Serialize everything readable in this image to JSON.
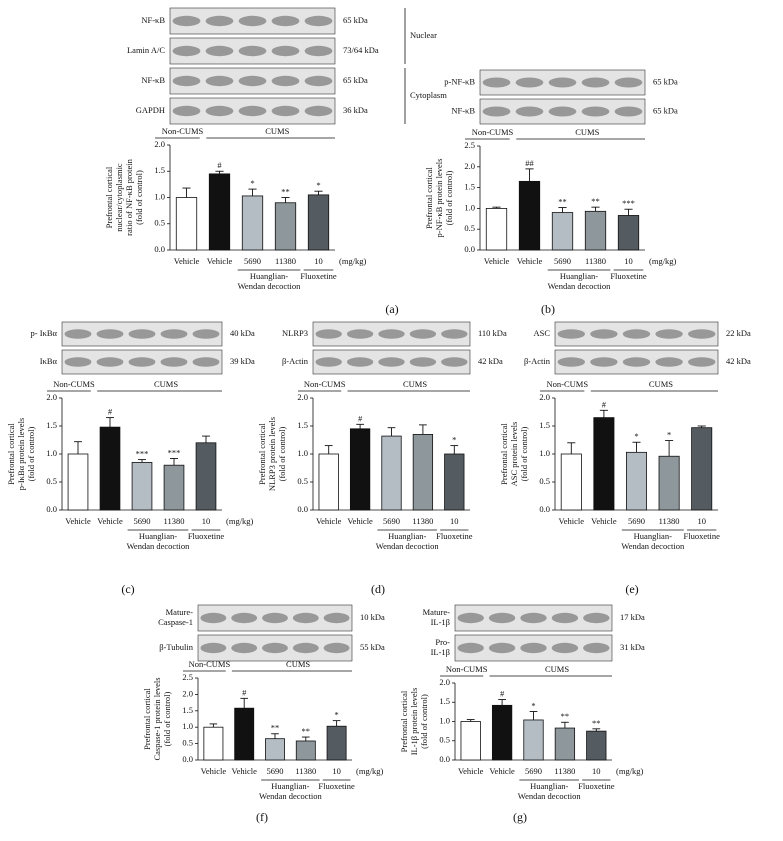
{
  "chart_data": [
    {
      "type": "bar",
      "panel": "(a)",
      "blots": [
        {
          "label": [
            "NF-κB"
          ],
          "size": "65 kDa"
        },
        {
          "label": [
            "Lamin A/C"
          ],
          "size": "73/64 kDa"
        },
        {
          "label": [
            "NF-κB"
          ],
          "size": "65 kDa"
        },
        {
          "label": [
            "GAPDH"
          ],
          "size": "36 kDa"
        }
      ],
      "fractions": [
        "Nuclear",
        "Cytoplasm"
      ],
      "groups": [
        "Non-CUMS",
        "CUMS"
      ],
      "treatments": [
        [
          "Huanglian-",
          "Wendan decoction"
        ],
        [
          "Fluoxetine"
        ]
      ],
      "unit": "(mg/kg)",
      "ylabel": [
        "Prefrontal cortical",
        "nuclear/cytoplasmic",
        "ratio of NF-κB protein",
        "(fold of control)"
      ],
      "categories": [
        "Vehicle",
        "Vehicle",
        "5690",
        "11380",
        "10"
      ],
      "values": [
        1.0,
        1.45,
        1.03,
        0.9,
        1.05
      ],
      "errors": [
        0.18,
        0.05,
        0.13,
        0.1,
        0.07
      ],
      "annotations": [
        null,
        "#",
        "*",
        "**",
        "*"
      ],
      "colors": [
        "#ffffff",
        "#111111",
        "#b4bcc4",
        "#8e979b",
        "#555c61"
      ],
      "ylim": [
        0,
        2
      ],
      "yticks": [
        {
          "value": 0,
          "label": "0.0"
        },
        0.5,
        {
          "value": 1,
          "label": "1.0"
        },
        1.5,
        {
          "value": 2,
          "label": "2.0"
        }
      ]
    },
    {
      "type": "bar",
      "panel": "(b)",
      "blots": [
        {
          "label": [
            "p-NF-κB"
          ],
          "size": "65 kDa"
        },
        {
          "label": [
            "NF-κB"
          ],
          "size": "65 kDa"
        }
      ],
      "groups": [
        "Non-CUMS",
        "CUMS"
      ],
      "treatments": [
        [
          "Huanglian-",
          "Wendan decoction"
        ],
        [
          "Fluoxetine"
        ]
      ],
      "unit": "(mg/kg)",
      "ylabel": [
        "Prefrontal cortical",
        "p-NF-κB protein levels",
        "(fold of control)"
      ],
      "categories": [
        "Vehicle",
        "Vehicle",
        "5690",
        "11380",
        "10"
      ],
      "values": [
        1.0,
        1.65,
        0.9,
        0.93,
        0.83
      ],
      "errors": [
        0.03,
        0.3,
        0.12,
        0.1,
        0.15
      ],
      "annotations": [
        null,
        "##",
        "**",
        "**",
        "***"
      ],
      "colors": [
        "#ffffff",
        "#111111",
        "#b4bcc4",
        "#8e979b",
        "#555c61"
      ],
      "ylim": [
        0,
        2.5
      ],
      "yticks": [
        {
          "value": 0,
          "label": "0.0"
        },
        0.5,
        {
          "value": 1,
          "label": "1.0"
        },
        1.5,
        {
          "value": 2,
          "label": "2.0"
        },
        2.5
      ]
    },
    {
      "type": "bar",
      "panel": "(c)",
      "blots": [
        {
          "label": [
            "p- IκBα"
          ],
          "size": "40 kDa"
        },
        {
          "label": [
            "IκBα"
          ],
          "size": "39 kDa"
        }
      ],
      "groups": [
        "Non-CUMS",
        "CUMS"
      ],
      "treatments": [
        [
          "Huanglian-",
          "Wendan decoction"
        ],
        [
          "Fluoxetine"
        ]
      ],
      "unit": "(mg/kg)",
      "ylabel": [
        "Prefrontal cortical",
        "p-IκBα protein levels",
        "(fold of control)"
      ],
      "categories": [
        "Vehicle",
        "Vehicle",
        "5690",
        "11380",
        "10"
      ],
      "values": [
        1.0,
        1.48,
        0.85,
        0.8,
        1.2
      ],
      "errors": [
        0.22,
        0.17,
        0.05,
        0.12,
        0.12
      ],
      "annotations": [
        null,
        "#",
        "***",
        "***",
        null
      ],
      "colors": [
        "#ffffff",
        "#111111",
        "#b4bcc4",
        "#8e979b",
        "#555c61"
      ],
      "ylim": [
        0,
        2
      ],
      "yticks": [
        {
          "value": 0,
          "label": "0.0"
        },
        0.5,
        {
          "value": 1,
          "label": "1.0"
        },
        1.5,
        {
          "value": 2,
          "label": "2.0"
        }
      ]
    },
    {
      "type": "bar",
      "panel": "(d)",
      "blots": [
        {
          "label": [
            "NLRP3"
          ],
          "size": "110 kDa"
        },
        {
          "label": [
            "β-Actin"
          ],
          "size": "42 kDa"
        }
      ],
      "groups": [
        "Non-CUMS",
        "CUMS"
      ],
      "treatments": [
        [
          "Huanglian-",
          "Wendan decoction"
        ],
        [
          "Fluoxetine"
        ]
      ],
      "ylabel": [
        "Prefrontal cortical",
        "NLRP3 protein levels",
        "(fold of control)"
      ],
      "categories": [
        "Vehicle",
        "Vehicle",
        "5690",
        "11380",
        "10"
      ],
      "values": [
        1.0,
        1.45,
        1.32,
        1.35,
        1.0
      ],
      "errors": [
        0.15,
        0.08,
        0.15,
        0.17,
        0.15
      ],
      "annotations": [
        null,
        "#",
        null,
        null,
        "*"
      ],
      "colors": [
        "#ffffff",
        "#111111",
        "#b4bcc4",
        "#8e979b",
        "#555c61"
      ],
      "ylim": [
        0,
        2
      ],
      "yticks": [
        {
          "value": 0,
          "label": "0.0"
        },
        0.5,
        {
          "value": 1,
          "label": "1.0"
        },
        1.5,
        {
          "value": 2,
          "label": "2.0"
        }
      ]
    },
    {
      "type": "bar",
      "panel": "(e)",
      "blots": [
        {
          "label": [
            "ASC"
          ],
          "size": "22 kDa"
        },
        {
          "label": [
            "β-Actin"
          ],
          "size": "42 kDa"
        }
      ],
      "groups": [
        "Non-CUMS",
        "CUMS"
      ],
      "treatments": [
        [
          "Huanglian-",
          "Wendan decoction"
        ],
        [
          "Fluoxetine"
        ]
      ],
      "ylabel": [
        "Prefrontal cortical",
        "ASC protein levels",
        "(fold of control)"
      ],
      "categories": [
        "Vehicle",
        "Vehicle",
        "5690",
        "11380",
        "10"
      ],
      "values": [
        1.0,
        1.65,
        1.03,
        0.96,
        1.47
      ],
      "errors": [
        0.2,
        0.13,
        0.18,
        0.28,
        0.03
      ],
      "annotations": [
        null,
        "#",
        "*",
        "*",
        null
      ],
      "colors": [
        "#ffffff",
        "#111111",
        "#b4bcc4",
        "#8e979b",
        "#555c61"
      ],
      "ylim": [
        0,
        2
      ],
      "yticks": [
        {
          "value": 0,
          "label": "0.0"
        },
        0.5,
        {
          "value": 1,
          "label": "1.0"
        },
        1.5,
        {
          "value": 2,
          "label": "2.0"
        }
      ]
    },
    {
      "type": "bar",
      "panel": "(f)",
      "blots": [
        {
          "label": [
            "Mature-",
            "Caspase-1"
          ],
          "size": "10 kDa"
        },
        {
          "label": [
            "β-Tubulin"
          ],
          "size": "55 kDa"
        }
      ],
      "groups": [
        "Non-CUMS",
        "CUMS"
      ],
      "treatments": [
        [
          "Huanglian-",
          "Wendan decoction"
        ],
        [
          "Fluoxetine"
        ]
      ],
      "unit": "(mg/kg)",
      "ylabel": [
        "Prefrontal cortical",
        "Caspase-1 protein levels",
        "(fold of control)"
      ],
      "categories": [
        "Vehicle",
        "Vehicle",
        "5690",
        "11380",
        "10"
      ],
      "values": [
        1.0,
        1.58,
        0.65,
        0.58,
        1.03
      ],
      "errors": [
        0.1,
        0.3,
        0.15,
        0.12,
        0.17
      ],
      "annotations": [
        null,
        "#",
        "**",
        "**",
        "*"
      ],
      "colors": [
        "#ffffff",
        "#111111",
        "#b4bcc4",
        "#8e979b",
        "#555c61"
      ],
      "ylim": [
        0,
        2.5
      ],
      "yticks": [
        {
          "value": 0,
          "label": "0.0"
        },
        0.5,
        {
          "value": 1,
          "label": "1.0"
        },
        1.5,
        {
          "value": 2,
          "label": "2.0"
        },
        2.5
      ]
    },
    {
      "type": "bar",
      "panel": "(g)",
      "blots": [
        {
          "label": [
            "Mature-",
            "IL-1β"
          ],
          "size": "17 kDa"
        },
        {
          "label": [
            "Pro-",
            "IL-1β"
          ],
          "size": "31 kDa"
        }
      ],
      "groups": [
        "Non-CUMS",
        "CUMS"
      ],
      "treatments": [
        [
          "Huanglian-",
          "Wendan decoction"
        ],
        [
          "Fluoxetine"
        ]
      ],
      "unit": "(mg/kg)",
      "ylabel": [
        "Prefrontal cortical",
        "IL-1β protein levels",
        "(fold of control)"
      ],
      "categories": [
        "Vehicle",
        "Vehicle",
        "5690",
        "11380",
        "10"
      ],
      "values": [
        1.0,
        1.42,
        1.04,
        0.83,
        0.75
      ],
      "errors": [
        0.05,
        0.15,
        0.22,
        0.15,
        0.06
      ],
      "annotations": [
        null,
        "#",
        "*",
        "**",
        "**"
      ],
      "colors": [
        "#ffffff",
        "#111111",
        "#b4bcc4",
        "#8e979b",
        "#555c61"
      ],
      "ylim": [
        0,
        2
      ],
      "yticks": [
        {
          "value": 0,
          "label": "0.0"
        },
        0.5,
        {
          "value": 1,
          "label": "1.0"
        },
        1.5,
        {
          "value": 2,
          "label": "2.0"
        }
      ]
    }
  ]
}
